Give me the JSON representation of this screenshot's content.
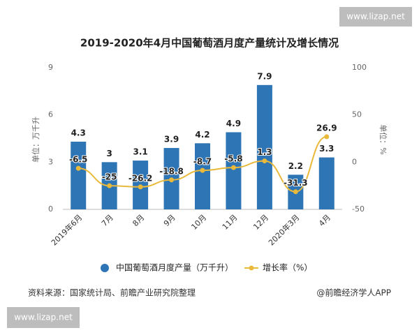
{
  "chart_data": {
    "type": "combo",
    "title": "2019-2020年4月中国葡萄酒月度产量统计及增长情况",
    "y_label": "单位：万千升",
    "y2_label": "单位：%",
    "categories": [
      "2019年6月",
      "7月",
      "8月",
      "9月",
      "10月",
      "11月",
      "12月",
      "2020年3月",
      "4月"
    ],
    "series": [
      {
        "name": "中国葡萄酒月度产量（万千升）",
        "type": "bar",
        "color": "#2e75b6",
        "values": [
          4.3,
          3,
          3.1,
          3.9,
          4.2,
          4.9,
          7.9,
          2.2,
          3.3
        ]
      },
      {
        "name": "增长率（%）",
        "type": "line",
        "axis": "y2",
        "color": "#e8b93a",
        "values": [
          -6.5,
          -25,
          -26.2,
          -18.8,
          -8.7,
          -5.8,
          1.3,
          -31.3,
          26.9
        ]
      }
    ],
    "ylim": [
      0,
      9
    ],
    "yticks": [
      0,
      3,
      6,
      9
    ],
    "y2lim": [
      -50,
      100
    ],
    "y2ticks": [
      -50,
      0,
      50,
      100
    ],
    "grid": false
  },
  "source": "资料来源：国家统计局、前瞻产业研究院整理",
  "credit": "@前瞻经济学人APP",
  "watermarks": [
    "www.lizap.net",
    "www.lizap.net"
  ]
}
